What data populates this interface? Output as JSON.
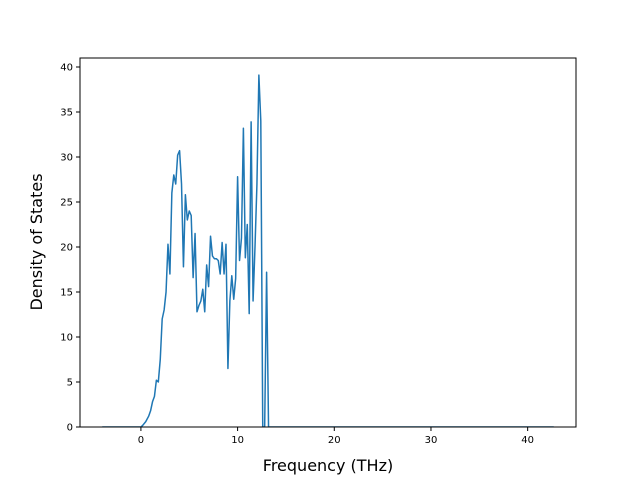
{
  "chart_data": {
    "type": "line",
    "title": "",
    "xlabel": "Frequency (THz)",
    "ylabel": "Density of States",
    "xlim": [
      -6.3,
      45.0
    ],
    "ylim": [
      0,
      41
    ],
    "xticks": [
      0,
      10,
      20,
      30,
      40
    ],
    "yticks": [
      0,
      5,
      10,
      15,
      20,
      25,
      30,
      35,
      40
    ],
    "grid": false,
    "legend": "none",
    "line_color": "#1f77b4",
    "series": [
      {
        "x": [
          -4.0,
          -3.0,
          -2.0,
          -1.0,
          0.0,
          0.2,
          0.5,
          0.8,
          1.0,
          1.2,
          1.4,
          1.6,
          1.8,
          2.0,
          2.2,
          2.4,
          2.6,
          2.8,
          3.0,
          3.2,
          3.4,
          3.6,
          3.8,
          4.0,
          4.2,
          4.4,
          4.6,
          4.8,
          5.0,
          5.2,
          5.4,
          5.6,
          5.8,
          6.0,
          6.2,
          6.4,
          6.6,
          6.8,
          7.0,
          7.2,
          7.4,
          7.6,
          7.8,
          8.0,
          8.2,
          8.4,
          8.6,
          8.8,
          9.0,
          9.2,
          9.4,
          9.6,
          9.8,
          10.0,
          10.2,
          10.4,
          10.6,
          10.8,
          11.0,
          11.2,
          11.4,
          11.6,
          11.8,
          12.0,
          12.2,
          12.4,
          12.6,
          12.8,
          13.0,
          13.2,
          13.4,
          13.6,
          13.8,
          14.0,
          14.2,
          14.4,
          14.6,
          14.8,
          15.0,
          15.2,
          15.4,
          15.6,
          15.8,
          16.0,
          16.2,
          16.4,
          17.0,
          20.0,
          25.0,
          30.0,
          35.0,
          40.0,
          42.7
        ],
        "y": [
          0,
          0,
          0,
          0,
          0,
          0.2,
          0.6,
          1.2,
          1.8,
          2.8,
          3.4,
          5.2,
          5.0,
          7.5,
          12.0,
          13.0,
          15.0,
          20.3,
          17.0,
          26.0,
          28.0,
          27.0,
          30.2,
          30.7,
          27.0,
          17.8,
          25.8,
          23.0,
          24.0,
          23.5,
          16.6,
          21.5,
          12.8,
          13.5,
          14.0,
          15.3,
          12.8,
          18.0,
          15.6,
          21.2,
          19.0,
          18.7,
          18.7,
          18.5,
          17.0,
          20.5,
          17.0,
          20.3,
          6.5,
          14.0,
          16.8,
          14.2,
          16.5,
          27.8,
          18.5,
          21.0,
          33.2,
          18.8,
          22.5,
          12.6,
          33.9,
          14.0,
          20.0,
          27.0,
          39.1,
          34.0,
          0,
          0,
          17.2,
          0,
          0,
          0,
          0,
          0,
          0,
          0,
          0,
          0,
          0,
          0,
          0,
          0,
          0,
          0,
          0,
          0,
          0,
          0,
          0,
          0,
          0,
          0,
          0
        ]
      }
    ]
  }
}
